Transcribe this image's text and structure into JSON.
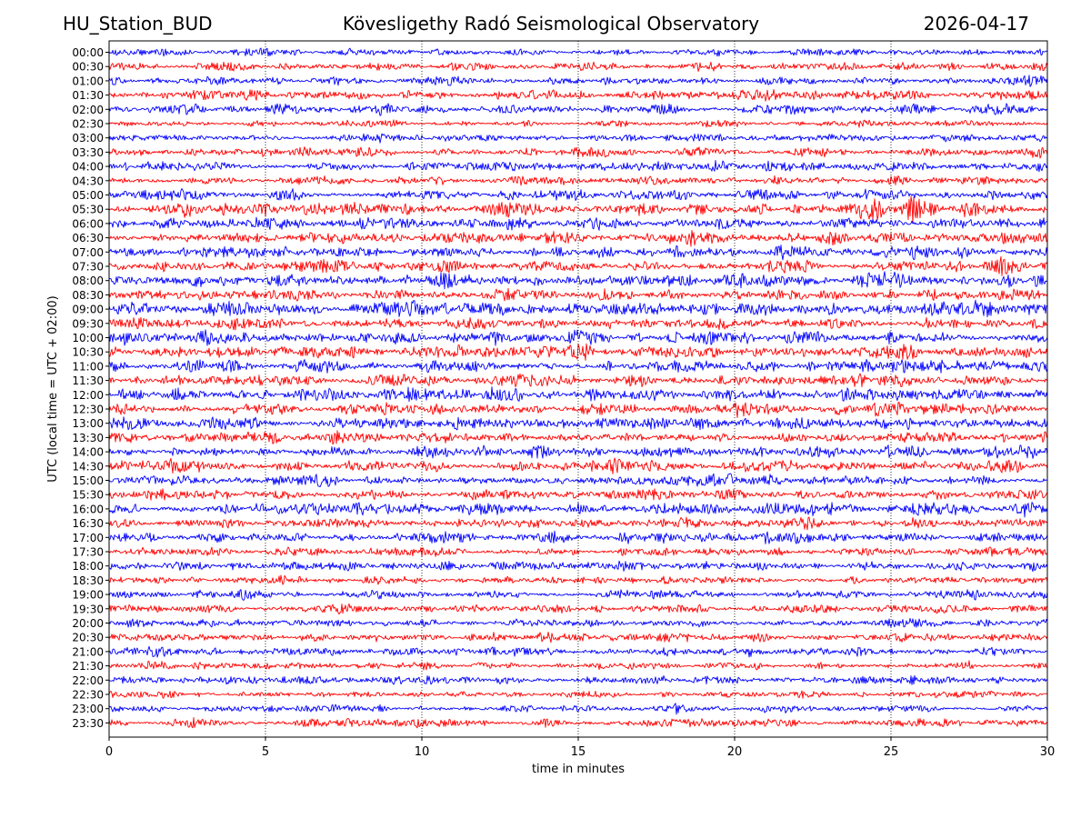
{
  "header": {
    "station": "HU_Station_BUD",
    "observatory": "Kövesligethy Radó Seismological Observatory",
    "date": "2026-04-17"
  },
  "chart_data": {
    "type": "line",
    "title": "Kövesligethy Radó Seismological Observatory",
    "xlabel": "time in minutes",
    "ylabel": "UTC (local time = UTC + 02:00)",
    "xlim": [
      0,
      30
    ],
    "x_ticks": [
      "0",
      "5",
      "10",
      "15",
      "20",
      "25",
      "30"
    ],
    "x_gridlines": [
      5,
      10,
      15,
      20,
      25
    ],
    "grid": "vertical dotted",
    "row_labels": [
      "00:00",
      "00:30",
      "01:00",
      "01:30",
      "02:00",
      "02:30",
      "03:00",
      "03:30",
      "04:00",
      "04:30",
      "05:00",
      "05:30",
      "06:00",
      "06:30",
      "07:00",
      "07:30",
      "08:00",
      "08:30",
      "09:00",
      "09:30",
      "10:00",
      "10:30",
      "11:00",
      "11:30",
      "12:00",
      "12:30",
      "13:00",
      "13:30",
      "14:00",
      "14:30",
      "15:00",
      "15:30",
      "16:00",
      "16:30",
      "17:00",
      "17:30",
      "18:00",
      "18:30",
      "19:00",
      "19:30",
      "20:00",
      "20:30",
      "21:00",
      "21:30",
      "22:00",
      "22:30",
      "23:00",
      "23:30"
    ],
    "row_colors": [
      "#0000ff",
      "#ff0000"
    ],
    "row_amplitudes": [
      0.3,
      0.35,
      0.35,
      0.45,
      0.45,
      0.3,
      0.35,
      0.4,
      0.45,
      0.4,
      0.5,
      0.55,
      0.5,
      0.5,
      0.55,
      0.5,
      0.6,
      0.5,
      0.6,
      0.5,
      0.55,
      0.55,
      0.55,
      0.55,
      0.6,
      0.55,
      0.55,
      0.5,
      0.55,
      0.55,
      0.5,
      0.45,
      0.55,
      0.45,
      0.5,
      0.4,
      0.4,
      0.35,
      0.4,
      0.35,
      0.35,
      0.4,
      0.4,
      0.35,
      0.35,
      0.3,
      0.35,
      0.35
    ],
    "events": [
      {
        "row": "01:30",
        "minute": 4.7,
        "strength": 2.0
      },
      {
        "row": "02:00",
        "minute": 14.8,
        "strength": 1.6
      },
      {
        "row": "02:00",
        "minute": 19.2,
        "strength": 1.5
      },
      {
        "row": "00:30",
        "minute": 20.5,
        "strength": 1.6
      },
      {
        "row": "05:30",
        "minute": 24.3,
        "strength": 3.5
      },
      {
        "row": "05:30",
        "minute": 25.8,
        "strength": 3.2
      },
      {
        "row": "05:00",
        "minute": 24.3,
        "strength": 2.0
      },
      {
        "row": "07:30",
        "minute": 28.5,
        "strength": 3.0
      },
      {
        "row": "08:00",
        "minute": 28.7,
        "strength": 2.0
      },
      {
        "row": "06:30",
        "minute": 25.3,
        "strength": 1.6
      },
      {
        "row": "09:00",
        "minute": 3.5,
        "strength": 1.8
      },
      {
        "row": "09:00",
        "minute": 9.0,
        "strength": 1.8
      },
      {
        "row": "10:30",
        "minute": 8.0,
        "strength": 1.6
      },
      {
        "row": "12:30",
        "minute": 20.3,
        "strength": 1.6
      },
      {
        "row": "13:00",
        "minute": 11.5,
        "strength": 1.6
      },
      {
        "row": "14:00",
        "minute": 10.0,
        "strength": 1.6
      },
      {
        "row": "15:00",
        "minute": 25.5,
        "strength": 1.7
      },
      {
        "row": "16:00",
        "minute": 6.5,
        "strength": 1.8
      },
      {
        "row": "16:30",
        "minute": 22.3,
        "strength": 2.2
      },
      {
        "row": "20:30",
        "minute": 6.8,
        "strength": 2.2
      },
      {
        "row": "21:00",
        "minute": 10.9,
        "strength": 1.8
      },
      {
        "row": "21:00",
        "minute": 1.6,
        "strength": 1.6
      },
      {
        "row": "23:00",
        "minute": 8.5,
        "strength": 1.6
      },
      {
        "row": "23:00",
        "minute": 18.2,
        "strength": 1.8
      }
    ]
  }
}
